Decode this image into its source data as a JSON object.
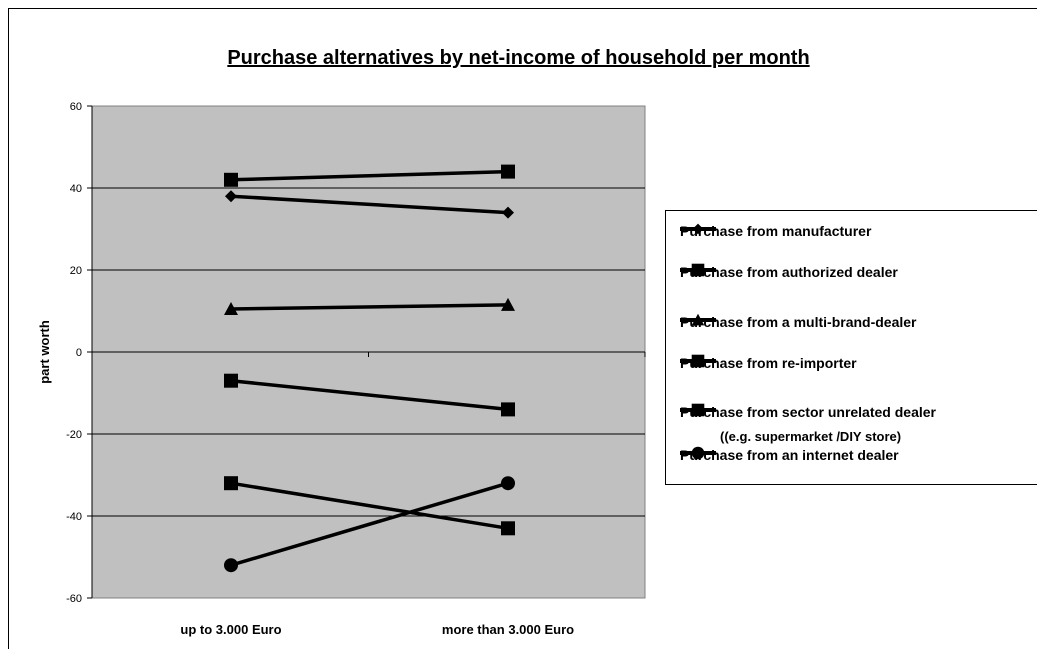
{
  "chart_data": {
    "type": "line",
    "title": "Purchase alternatives by net-income of household per month",
    "ylabel": "part worth",
    "xlabel": "",
    "categories": [
      "up to 3.000 Euro",
      "more than 3.000 Euro"
    ],
    "ylim": [
      -60,
      60
    ],
    "yticks": [
      60,
      40,
      20,
      0,
      -20,
      -40,
      -60
    ],
    "grid": true,
    "legend_position": "right",
    "plot_background": "#C0C0C0",
    "line_color": "#000000",
    "series": [
      {
        "name": "Purchase from manufacturer",
        "marker": "diamond",
        "values": [
          38,
          34
        ]
      },
      {
        "name": "Purchase from authorized dealer",
        "marker": "square",
        "values": [
          42,
          44
        ]
      },
      {
        "name": "Purchase from a multi-brand-dealer",
        "marker": "triangle",
        "values": [
          10.5,
          11.5
        ]
      },
      {
        "name": "Purchase from re-importer",
        "marker": "square",
        "values": [
          -7,
          -14
        ]
      },
      {
        "name": "Purchase from sector unrelated dealer",
        "marker": "square",
        "values": [
          -32,
          -43
        ]
      },
      {
        "name": "Purchase from an internet dealer",
        "marker": "circle",
        "values": [
          -52,
          -32
        ]
      }
    ],
    "legend_note": "((e.g. supermarket /DIY store)"
  }
}
